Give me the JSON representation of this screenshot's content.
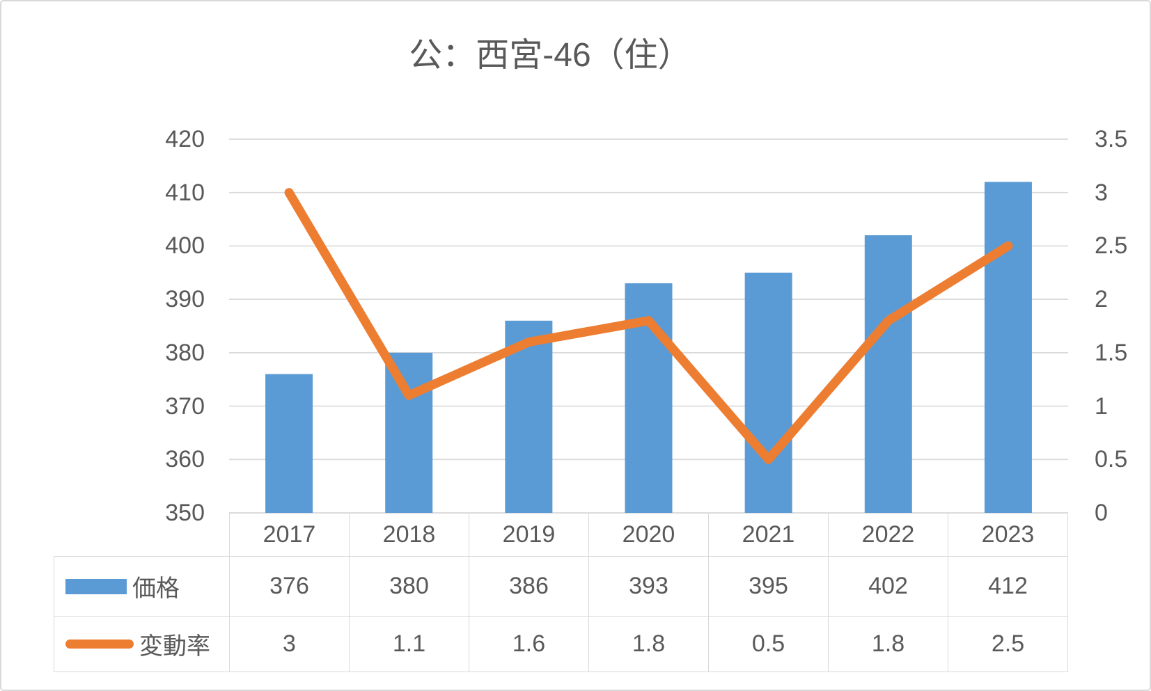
{
  "title": "公：西宮-46（住）",
  "colors": {
    "bar": "#5B9BD5",
    "line": "#ED7D31",
    "gridline": "#D9D9D9",
    "table_border": "#D9D9D9",
    "text": "#595959"
  },
  "chart_data": {
    "type": "bar",
    "subtype": "combo bar+line, secondary right axis",
    "title": "公：西宮-46（住）",
    "categories": [
      "2017",
      "2018",
      "2019",
      "2020",
      "2021",
      "2022",
      "2023"
    ],
    "series": [
      {
        "name": "価格",
        "type": "bar",
        "axis": "left",
        "color": "#5B9BD5",
        "values": [
          376,
          380,
          386,
          393,
          395,
          402,
          412
        ]
      },
      {
        "name": "変動率",
        "type": "line",
        "axis": "right",
        "color": "#ED7D31",
        "values": [
          3,
          1.1,
          1.6,
          1.8,
          0.5,
          1.8,
          2.5
        ]
      }
    ],
    "axes": {
      "left": {
        "min": 350,
        "max": 420,
        "step": 10,
        "ticks": [
          420,
          410,
          400,
          390,
          380,
          370,
          360,
          350
        ]
      },
      "right": {
        "min": 0,
        "max": 3.5,
        "step": 0.5,
        "ticks": [
          3.5,
          3,
          2.5,
          2,
          1.5,
          1,
          0.5,
          0
        ]
      }
    },
    "grid": true,
    "legend_position": "data-table left column",
    "data_table_shown": true
  }
}
